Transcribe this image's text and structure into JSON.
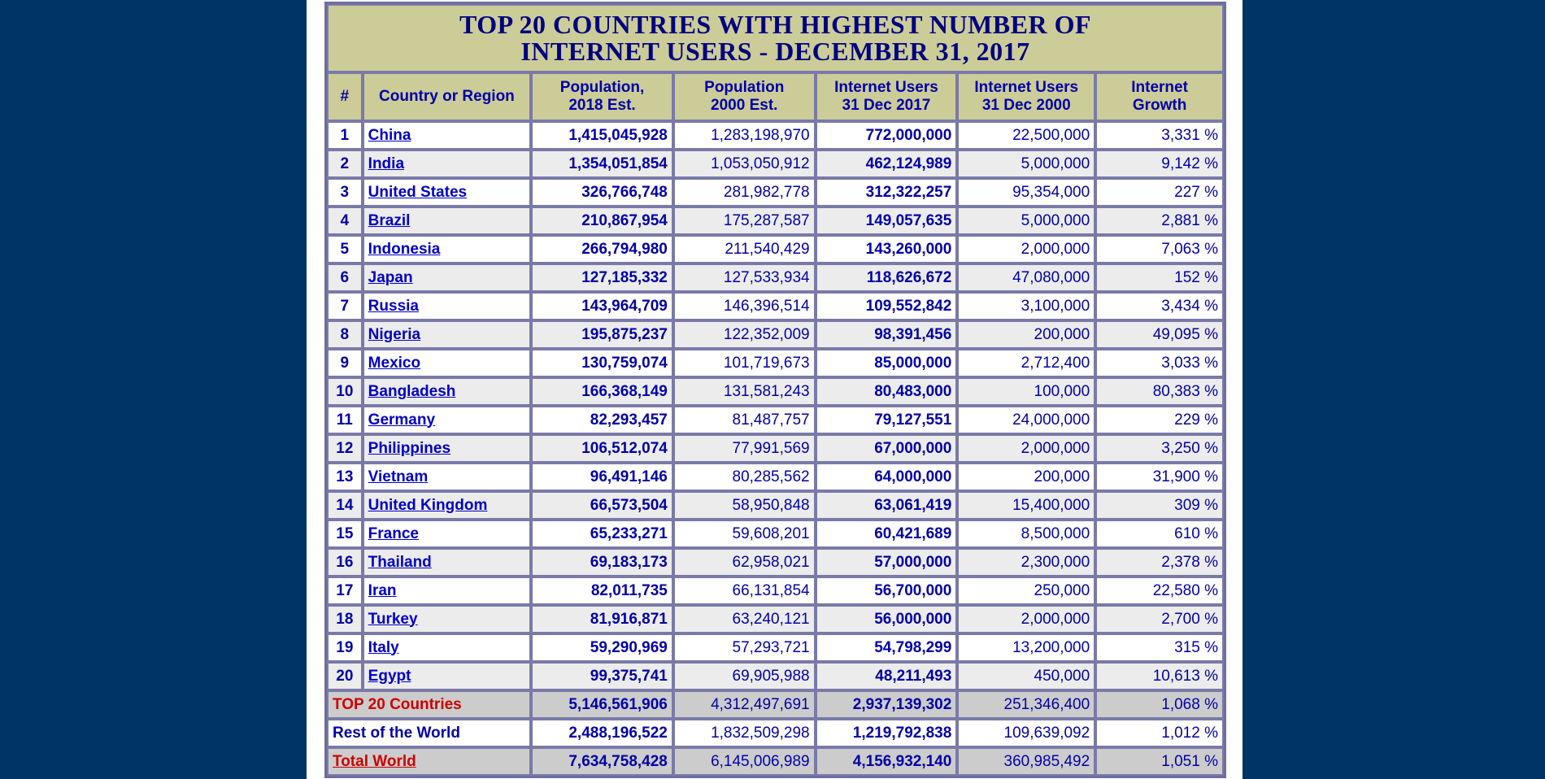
{
  "title": {
    "line1": "TOP 20 COUNTRIES WITH HIGHEST NUMBER OF",
    "line2": "INTERNET USERS - DECEMBER 31, 2017"
  },
  "headers": {
    "rank": "#",
    "country": "Country or Region",
    "pop2018_l1": "Population,",
    "pop2018_l2": "2018 Est.",
    "pop2000_l1": "Population",
    "pop2000_l2": "2000 Est.",
    "users2017_l1": "Internet Users",
    "users2017_l2": "31 Dec 2017",
    "users2000_l1": "Internet Users",
    "users2000_l2": "31 Dec 2000",
    "growth_l1": "Internet",
    "growth_l2": "Growth"
  },
  "rows": [
    {
      "rank": "1",
      "country": "China",
      "pop2018": "1,415,045,928",
      "pop2000": "1,283,198,970",
      "users2017": "772,000,000",
      "users2000": "22,500,000",
      "growth": "3,331 %"
    },
    {
      "rank": "2",
      "country": "India",
      "pop2018": "1,354,051,854",
      "pop2000": "1,053,050,912",
      "users2017": "462,124,989",
      "users2000": "5,000,000",
      "growth": "9,142 %"
    },
    {
      "rank": "3",
      "country": "United States",
      "pop2018": "326,766,748",
      "pop2000": "281,982,778",
      "users2017": "312,322,257",
      "users2000": "95,354,000",
      "growth": "227 %"
    },
    {
      "rank": "4",
      "country": "Brazil",
      "pop2018": "210,867,954",
      "pop2000": "175,287,587",
      "users2017": "149,057,635",
      "users2000": "5,000,000",
      "growth": "2,881 %"
    },
    {
      "rank": "5",
      "country": "Indonesia",
      "pop2018": "266,794,980",
      "pop2000": "211,540,429",
      "users2017": "143,260,000",
      "users2000": "2,000,000",
      "growth": "7,063 %"
    },
    {
      "rank": "6",
      "country": "Japan",
      "pop2018": "127,185,332",
      "pop2000": "127,533,934",
      "users2017": "118,626,672",
      "users2000": "47,080,000",
      "growth": "152 %"
    },
    {
      "rank": "7",
      "country": "Russia",
      "pop2018": "143,964,709",
      "pop2000": "146,396,514",
      "users2017": "109,552,842",
      "users2000": "3,100,000",
      "growth": "3,434 %"
    },
    {
      "rank": "8",
      "country": "Nigeria",
      "pop2018": "195,875,237",
      "pop2000": "122,352,009",
      "users2017": "98,391,456",
      "users2000": "200,000",
      "growth": "49,095 %"
    },
    {
      "rank": "9",
      "country": "Mexico",
      "pop2018": "130,759,074",
      "pop2000": "101,719,673",
      "users2017": "85,000,000",
      "users2000": "2,712,400",
      "growth": "3,033 %"
    },
    {
      "rank": "10",
      "country": "Bangladesh",
      "pop2018": "166,368,149",
      "pop2000": "131,581,243",
      "users2017": "80,483,000",
      "users2000": "100,000",
      "growth": "80,383 %"
    },
    {
      "rank": "11",
      "country": "Germany",
      "pop2018": "82,293,457",
      "pop2000": "81,487,757",
      "users2017": "79,127,551",
      "users2000": "24,000,000",
      "growth": "229 %"
    },
    {
      "rank": "12",
      "country": "Philippines",
      "pop2018": "106,512,074",
      "pop2000": "77,991,569",
      "users2017": "67,000,000",
      "users2000": "2,000,000",
      "growth": "3,250 %"
    },
    {
      "rank": "13",
      "country": "Vietnam",
      "pop2018": "96,491,146",
      "pop2000": "80,285,562",
      "users2017": "64,000,000",
      "users2000": "200,000",
      "growth": "31,900 %"
    },
    {
      "rank": "14",
      "country": "United Kingdom",
      "pop2018": "66,573,504",
      "pop2000": "58,950,848",
      "users2017": "63,061,419",
      "users2000": "15,400,000",
      "growth": "309 %"
    },
    {
      "rank": "15",
      "country": "France",
      "pop2018": "65,233,271",
      "pop2000": "59,608,201",
      "users2017": "60,421,689",
      "users2000": "8,500,000",
      "growth": "610 %"
    },
    {
      "rank": "16",
      "country": "Thailand",
      "pop2018": "69,183,173",
      "pop2000": "62,958,021",
      "users2017": "57,000,000",
      "users2000": "2,300,000",
      "growth": "2,378 %"
    },
    {
      "rank": "17",
      "country": "Iran",
      "pop2018": "82,011,735",
      "pop2000": "66,131,854",
      "users2017": "56,700,000",
      "users2000": "250,000",
      "growth": "22,580 %"
    },
    {
      "rank": "18",
      "country": "Turkey",
      "pop2018": "81,916,871",
      "pop2000": "63,240,121",
      "users2017": "56,000,000",
      "users2000": "2,000,000",
      "growth": "2,700 %"
    },
    {
      "rank": "19",
      "country": "Italy",
      "pop2018": "59,290,969",
      "pop2000": "57,293,721",
      "users2017": "54,798,299",
      "users2000": "13,200,000",
      "growth": "315 %"
    },
    {
      "rank": "20",
      "country": "Egypt",
      "pop2018": "99,375,741",
      "pop2000": "69,905,988",
      "users2017": "48,211,493",
      "users2000": "450,000",
      "growth": "10,613 %"
    }
  ],
  "totals": {
    "top20": {
      "label": "TOP 20 Countries",
      "pop2018": "5,146,561,906",
      "pop2000": "4,312,497,691",
      "users2017": "2,937,139,302",
      "users2000": "251,346,400",
      "growth": "1,068 %"
    },
    "rest": {
      "label": "Rest of the World",
      "pop2018": "2,488,196,522",
      "pop2000": "1,832,509,298",
      "users2017": "1,219,792,838",
      "users2000": "109,639,092",
      "growth": "1,012 %"
    },
    "world": {
      "label": "Total World",
      "pop2018": "7,634,758,428",
      "pop2000": "6,145,006,989",
      "users2017": "4,156,932,140",
      "users2000": "360,985,492",
      "growth": "1,051 %"
    }
  },
  "colors": {
    "background": "#003366",
    "header_bg": "#cccc99",
    "text_blue": "#0000a8",
    "total_red": "#cc0000"
  }
}
